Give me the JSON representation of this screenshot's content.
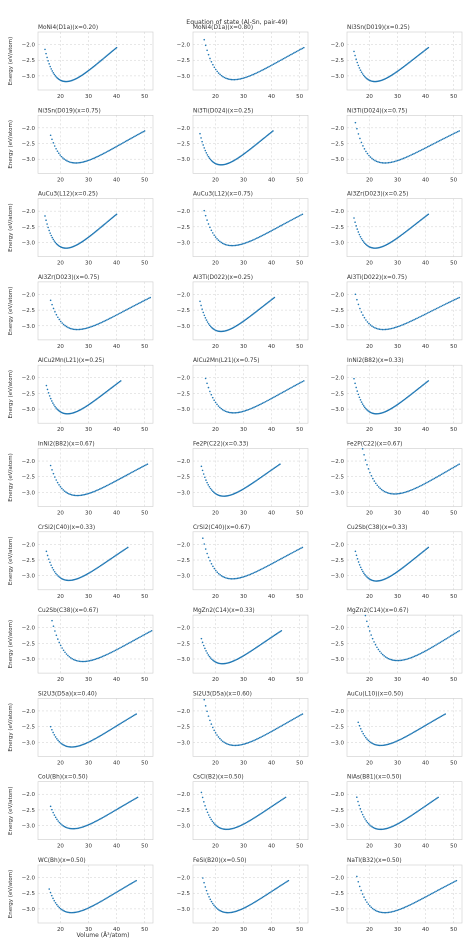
{
  "figure": {
    "suptitle": "Equation of state (Al-Sn, pair-49)",
    "xlabel": "Volume (Å³/atom)",
    "ylabel": "Energy (eV/atom)",
    "line_color": "#1f77b4",
    "grid_color": "#cfcfcf"
  },
  "chart_data": [
    {
      "type": "scatter",
      "title": "MoNi4(D1a)(x=0.20)",
      "v0": 22.0,
      "e0": -3.18,
      "vmin": 14.5,
      "vmax": 40.0,
      "ylim": [
        -3.45,
        -1.6
      ],
      "xticks": [
        20,
        30,
        40,
        50
      ],
      "yticks": [
        -2.0,
        -2.5,
        -3.0
      ],
      "xlim": [
        12,
        53
      ]
    },
    {
      "type": "scatter",
      "title": "MoNi4(D1a)(x=0.80)",
      "v0": 26.5,
      "e0": -3.12,
      "vmin": 16.0,
      "vmax": 51.5,
      "ylim": [
        -3.45,
        -1.6
      ],
      "xticks": [
        20,
        30,
        40,
        50
      ],
      "yticks": [
        -2.0,
        -2.5,
        -3.0
      ],
      "xlim": [
        12,
        53
      ]
    },
    {
      "type": "scatter",
      "title": "Ni3Sn(D019)(x=0.25)",
      "v0": 22.0,
      "e0": -3.18,
      "vmin": 14.5,
      "vmax": 41.0,
      "ylim": [
        -3.45,
        -1.6
      ],
      "xticks": [
        20,
        30,
        40,
        50
      ],
      "yticks": [
        -2.0,
        -2.5,
        -3.0
      ],
      "xlim": [
        12,
        53
      ]
    },
    {
      "type": "scatter",
      "title": "Ni3Sn(D019)(x=0.75)",
      "v0": 25.5,
      "e0": -3.12,
      "vmin": 16.5,
      "vmax": 50.0,
      "ylim": [
        -3.45,
        -1.6
      ],
      "xticks": [
        20,
        30,
        40,
        50
      ],
      "yticks": [
        -2.0,
        -2.5,
        -3.0
      ],
      "xlim": [
        12,
        53
      ]
    },
    {
      "type": "scatter",
      "title": "Ni3Ti(D024)(x=0.25)",
      "v0": 22.0,
      "e0": -3.18,
      "vmin": 14.5,
      "vmax": 40.5,
      "ylim": [
        -3.45,
        -1.6
      ],
      "xticks": [
        20,
        30,
        40,
        50
      ],
      "yticks": [
        -2.0,
        -2.5,
        -3.0
      ],
      "xlim": [
        12,
        53
      ]
    },
    {
      "type": "scatter",
      "title": "Ni3Ti(D024)(x=0.75)",
      "v0": 25.5,
      "e0": -3.12,
      "vmin": 15.0,
      "vmax": 52.0,
      "ylim": [
        -3.45,
        -1.6
      ],
      "xticks": [
        20,
        30,
        40,
        50
      ],
      "yticks": [
        -2.0,
        -2.5,
        -3.0
      ],
      "xlim": [
        12,
        53
      ]
    },
    {
      "type": "scatter",
      "title": "AuCu3(L12)(x=0.25)",
      "v0": 22.0,
      "e0": -3.18,
      "vmin": 14.5,
      "vmax": 40.0,
      "ylim": [
        -3.45,
        -1.6
      ],
      "xticks": [
        20,
        30,
        40,
        50
      ],
      "yticks": [
        -2.0,
        -2.5,
        -3.0
      ],
      "xlim": [
        12,
        53
      ]
    },
    {
      "type": "scatter",
      "title": "AuCu3(L12)(x=0.75)",
      "v0": 26.0,
      "e0": -3.1,
      "vmin": 16.0,
      "vmax": 51.0,
      "ylim": [
        -3.45,
        -1.6
      ],
      "xticks": [
        20,
        30,
        40,
        50
      ],
      "yticks": [
        -2.0,
        -2.5,
        -3.0
      ],
      "xlim": [
        12,
        53
      ]
    },
    {
      "type": "scatter",
      "title": "Al3Zr(D023)(x=0.25)",
      "v0": 22.0,
      "e0": -3.18,
      "vmin": 14.5,
      "vmax": 41.0,
      "ylim": [
        -3.45,
        -1.6
      ],
      "xticks": [
        20,
        30,
        40,
        50
      ],
      "yticks": [
        -2.0,
        -2.5,
        -3.0
      ],
      "xlim": [
        12,
        53
      ]
    },
    {
      "type": "scatter",
      "title": "Al3Zr(D023)(x=0.75)",
      "v0": 26.0,
      "e0": -3.12,
      "vmin": 16.5,
      "vmax": 52.0,
      "ylim": [
        -3.45,
        -1.6
      ],
      "xticks": [
        20,
        30,
        40,
        50
      ],
      "yticks": [
        -2.0,
        -2.5,
        -3.0
      ],
      "xlim": [
        12,
        53
      ]
    },
    {
      "type": "scatter",
      "title": "Al3Ti(D022)(x=0.25)",
      "v0": 22.0,
      "e0": -3.18,
      "vmin": 14.5,
      "vmax": 41.0,
      "ylim": [
        -3.45,
        -1.6
      ],
      "xticks": [
        20,
        30,
        40,
        50
      ],
      "yticks": [
        -2.0,
        -2.5,
        -3.0
      ],
      "xlim": [
        12,
        53
      ]
    },
    {
      "type": "scatter",
      "title": "Al3Ti(D022)(x=0.75)",
      "v0": 25.0,
      "e0": -3.12,
      "vmin": 15.0,
      "vmax": 52.0,
      "ylim": [
        -3.45,
        -1.6
      ],
      "xticks": [
        20,
        30,
        40,
        50
      ],
      "yticks": [
        -2.0,
        -2.5,
        -3.0
      ],
      "xlim": [
        12,
        53
      ]
    },
    {
      "type": "scatter",
      "title": "AlCu2Mn(L21)(x=0.25)",
      "v0": 22.5,
      "e0": -3.15,
      "vmin": 15.0,
      "vmax": 41.5,
      "ylim": [
        -3.45,
        -1.6
      ],
      "xticks": [
        20,
        30,
        40,
        50
      ],
      "yticks": [
        -2.0,
        -2.5,
        -3.0
      ],
      "xlim": [
        12,
        53
      ]
    },
    {
      "type": "scatter",
      "title": "AlCu2Mn(L21)(x=0.75)",
      "v0": 26.5,
      "e0": -3.12,
      "vmin": 16.5,
      "vmax": 51.5,
      "ylim": [
        -3.45,
        -1.6
      ],
      "xticks": [
        20,
        30,
        40,
        50
      ],
      "yticks": [
        -2.0,
        -2.5,
        -3.0
      ],
      "xlim": [
        12,
        53
      ]
    },
    {
      "type": "scatter",
      "title": "InNi2(B82)(x=0.33)",
      "v0": 22.5,
      "e0": -3.15,
      "vmin": 14.5,
      "vmax": 41.0,
      "ylim": [
        -3.45,
        -1.6
      ],
      "xticks": [
        20,
        30,
        40,
        50
      ],
      "yticks": [
        -2.0,
        -2.5,
        -3.0
      ],
      "xlim": [
        12,
        53
      ]
    },
    {
      "type": "scatter",
      "title": "InNi2(B82)(x=0.67)",
      "v0": 26.0,
      "e0": -3.1,
      "vmin": 16.5,
      "vmax": 51.0,
      "ylim": [
        -3.45,
        -1.6
      ],
      "xticks": [
        20,
        30,
        40,
        50
      ],
      "yticks": [
        -2.0,
        -2.5,
        -3.0
      ],
      "xlim": [
        12,
        53
      ]
    },
    {
      "type": "scatter",
      "title": "Fe2P(C22)(x=0.33)",
      "v0": 23.0,
      "e0": -3.12,
      "vmin": 15.0,
      "vmax": 43.0,
      "ylim": [
        -3.45,
        -1.6
      ],
      "xticks": [
        20,
        30,
        40,
        50
      ],
      "yticks": [
        -2.0,
        -2.5,
        -3.0
      ],
      "xlim": [
        12,
        53
      ]
    },
    {
      "type": "scatter",
      "title": "Fe2P(C22)(x=0.67)",
      "v0": 29.0,
      "e0": -3.05,
      "vmin": 16.0,
      "vmax": 52.0,
      "ylim": [
        -3.45,
        -1.6
      ],
      "xticks": [
        20,
        30,
        40,
        50
      ],
      "yticks": [
        -2.0,
        -2.5,
        -3.0
      ],
      "xlim": [
        12,
        53
      ]
    },
    {
      "type": "scatter",
      "title": "CrSi2(C40)(x=0.33)",
      "v0": 23.0,
      "e0": -3.15,
      "vmin": 15.0,
      "vmax": 44.0,
      "ylim": [
        -3.45,
        -1.6
      ],
      "xticks": [
        20,
        30,
        40,
        50
      ],
      "yticks": [
        -2.0,
        -2.5,
        -3.0
      ],
      "xlim": [
        12,
        53
      ]
    },
    {
      "type": "scatter",
      "title": "CrSi2(C40)(x=0.67)",
      "v0": 26.0,
      "e0": -3.1,
      "vmin": 15.5,
      "vmax": 51.0,
      "ylim": [
        -3.45,
        -1.6
      ],
      "xticks": [
        20,
        30,
        40,
        50
      ],
      "yticks": [
        -2.0,
        -2.5,
        -3.0
      ],
      "xlim": [
        12,
        53
      ]
    },
    {
      "type": "scatter",
      "title": "Cu2Sb(C38)(x=0.33)",
      "v0": 22.5,
      "e0": -3.17,
      "vmin": 15.0,
      "vmax": 41.0,
      "ylim": [
        -3.45,
        -1.6
      ],
      "xticks": [
        20,
        30,
        40,
        50
      ],
      "yticks": [
        -2.0,
        -2.5,
        -3.0
      ],
      "xlim": [
        12,
        53
      ]
    },
    {
      "type": "scatter",
      "title": "Cu2Sb(C38)(x=0.67)",
      "v0": 28.0,
      "e0": -3.08,
      "vmin": 17.0,
      "vmax": 52.5,
      "ylim": [
        -3.45,
        -1.6
      ],
      "xticks": [
        20,
        30,
        40,
        50
      ],
      "yticks": [
        -2.0,
        -2.5,
        -3.0
      ],
      "xlim": [
        12,
        53
      ]
    },
    {
      "type": "scatter",
      "title": "MgZn2(C14)(x=0.33)",
      "v0": 22.5,
      "e0": -3.15,
      "vmin": 15.0,
      "vmax": 43.5,
      "ylim": [
        -3.45,
        -1.6
      ],
      "xticks": [
        20,
        30,
        40,
        50
      ],
      "yticks": [
        -2.0,
        -2.5,
        -3.0
      ],
      "xlim": [
        12,
        53
      ]
    },
    {
      "type": "scatter",
      "title": "MgZn2(C14)(x=0.67)",
      "v0": 30.0,
      "e0": -3.05,
      "vmin": 16.5,
      "vmax": 52.0,
      "ylim": [
        -3.45,
        -1.6
      ],
      "xticks": [
        20,
        30,
        40,
        50
      ],
      "yticks": [
        -2.0,
        -2.5,
        -3.0
      ],
      "xlim": [
        12,
        53
      ]
    },
    {
      "type": "scatter",
      "title": "Si2U3(D5a)(x=0.40)",
      "v0": 24.0,
      "e0": -3.15,
      "vmin": 16.5,
      "vmax": 47.0,
      "ylim": [
        -3.45,
        -1.6
      ],
      "xticks": [
        20,
        30,
        40,
        50
      ],
      "yticks": [
        -2.0,
        -2.5,
        -3.0
      ],
      "xlim": [
        12,
        53
      ]
    },
    {
      "type": "scatter",
      "title": "Si2U3(D5a)(x=0.60)",
      "v0": 27.0,
      "e0": -3.1,
      "vmin": 16.0,
      "vmax": 51.0,
      "ylim": [
        -3.45,
        -1.6
      ],
      "xticks": [
        20,
        30,
        40,
        50
      ],
      "yticks": [
        -2.0,
        -2.5,
        -3.0
      ],
      "xlim": [
        12,
        53
      ]
    },
    {
      "type": "scatter",
      "title": "AuCu(L10)(x=0.50)",
      "v0": 24.0,
      "e0": -3.1,
      "vmin": 16.0,
      "vmax": 47.0,
      "ylim": [
        -3.45,
        -1.6
      ],
      "xticks": [
        20,
        30,
        40,
        50
      ],
      "yticks": [
        -2.0,
        -2.5,
        -3.0
      ],
      "xlim": [
        12,
        53
      ]
    },
    {
      "type": "scatter",
      "title": "CoU(Bh)(x=0.50)",
      "v0": 24.5,
      "e0": -3.1,
      "vmin": 16.5,
      "vmax": 47.5,
      "ylim": [
        -3.45,
        -1.6
      ],
      "xticks": [
        20,
        30,
        40,
        50
      ],
      "yticks": [
        -2.0,
        -2.5,
        -3.0
      ],
      "xlim": [
        12,
        53
      ]
    },
    {
      "type": "scatter",
      "title": "CsCl(B2)(x=0.50)",
      "v0": 24.0,
      "e0": -3.12,
      "vmin": 15.0,
      "vmax": 45.0,
      "ylim": [
        -3.45,
        -1.6
      ],
      "xticks": [
        20,
        30,
        40,
        50
      ],
      "yticks": [
        -2.0,
        -2.5,
        -3.0
      ],
      "xlim": [
        12,
        53
      ]
    },
    {
      "type": "scatter",
      "title": "NiAs(B81)(x=0.50)",
      "v0": 24.0,
      "e0": -3.12,
      "vmin": 15.5,
      "vmax": 44.5,
      "ylim": [
        -3.45,
        -1.6
      ],
      "xticks": [
        20,
        30,
        40,
        50
      ],
      "yticks": [
        -2.0,
        -2.5,
        -3.0
      ],
      "xlim": [
        12,
        53
      ]
    },
    {
      "type": "scatter",
      "title": "WC(Bh)(x=0.50)",
      "v0": 24.0,
      "e0": -3.12,
      "vmin": 16.0,
      "vmax": 47.0,
      "ylim": [
        -3.45,
        -1.6
      ],
      "xticks": [
        20,
        30,
        40,
        50
      ],
      "yticks": [
        -2.0,
        -2.5,
        -3.0
      ],
      "xlim": [
        12,
        53
      ]
    },
    {
      "type": "scatter",
      "title": "FeSi(B20)(x=0.50)",
      "v0": 24.5,
      "e0": -3.12,
      "vmin": 15.5,
      "vmax": 46.0,
      "ylim": [
        -3.45,
        -1.6
      ],
      "xticks": [
        20,
        30,
        40,
        50
      ],
      "yticks": [
        -2.0,
        -2.5,
        -3.0
      ],
      "xlim": [
        12,
        53
      ]
    },
    {
      "type": "scatter",
      "title": "NaTl(B32)(x=0.50)",
      "v0": 25.5,
      "e0": -3.12,
      "vmin": 15.5,
      "vmax": 51.0,
      "ylim": [
        -3.45,
        -1.6
      ],
      "xticks": [
        20,
        30,
        40,
        50
      ],
      "yticks": [
        -2.0,
        -2.5,
        -3.0
      ],
      "xlim": [
        12,
        53
      ]
    }
  ]
}
